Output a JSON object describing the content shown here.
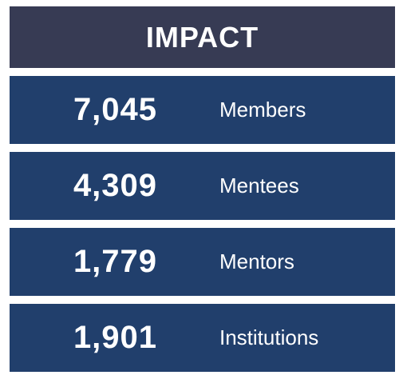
{
  "header": {
    "title": "IMPACT"
  },
  "stats": [
    {
      "value": "7,045",
      "label": "Members"
    },
    {
      "value": "4,309",
      "label": "Mentees"
    },
    {
      "value": "1,779",
      "label": "Mentors"
    },
    {
      "value": "1,901",
      "label": "Institutions"
    }
  ],
  "colors": {
    "header_bg": "#373b54",
    "row_bg": "#213f6c",
    "text": "#ffffff"
  }
}
